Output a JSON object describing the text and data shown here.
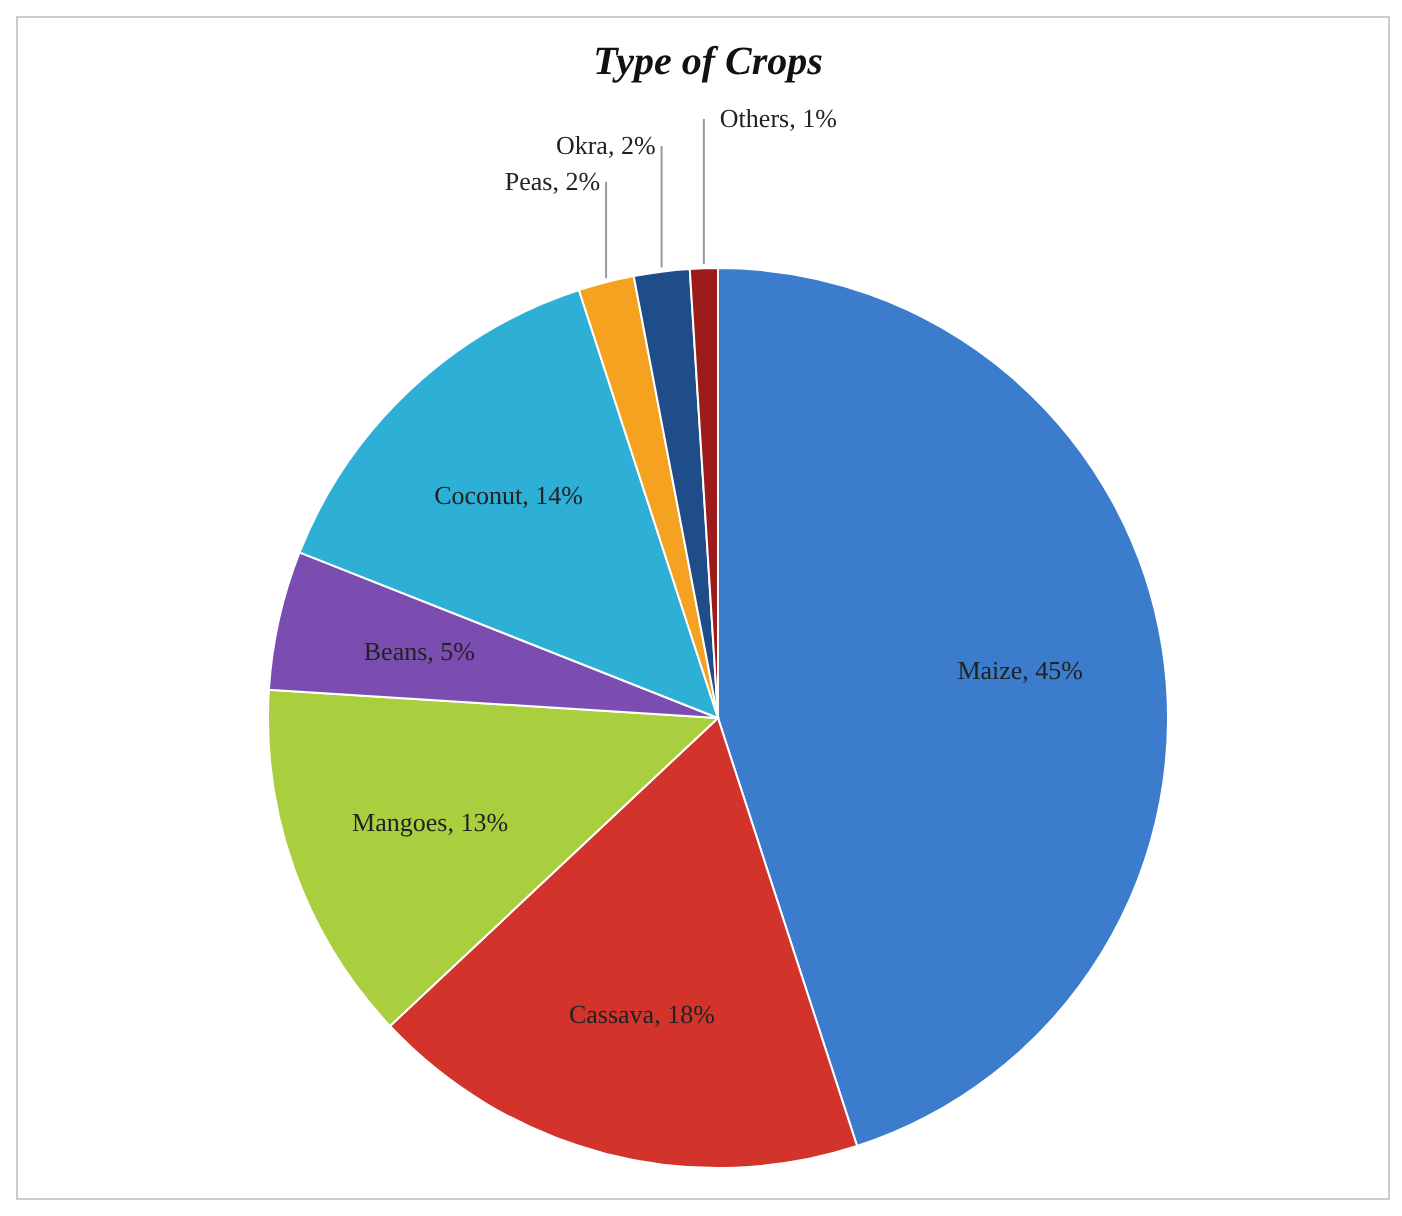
{
  "chart_data": {
    "type": "pie",
    "title": "Type of Crops",
    "categories": [
      "Maize",
      "Cassava",
      "Mangoes",
      "Beans",
      "Coconut",
      "Peas",
      "Okra",
      "Others"
    ],
    "values": [
      45,
      18,
      13,
      5,
      14,
      2,
      2,
      1
    ],
    "value_labels": [
      "45%",
      "18%",
      "13%",
      "5%",
      "14%",
      "2%",
      "2%",
      "1%"
    ],
    "colors": [
      "#3b7ccc",
      "#d2332b",
      "#a9cf3f",
      "#7b4db0",
      "#2eafd6",
      "#f4a21f",
      "#1f4d8a",
      "#9e1b1b"
    ],
    "legend": false
  }
}
